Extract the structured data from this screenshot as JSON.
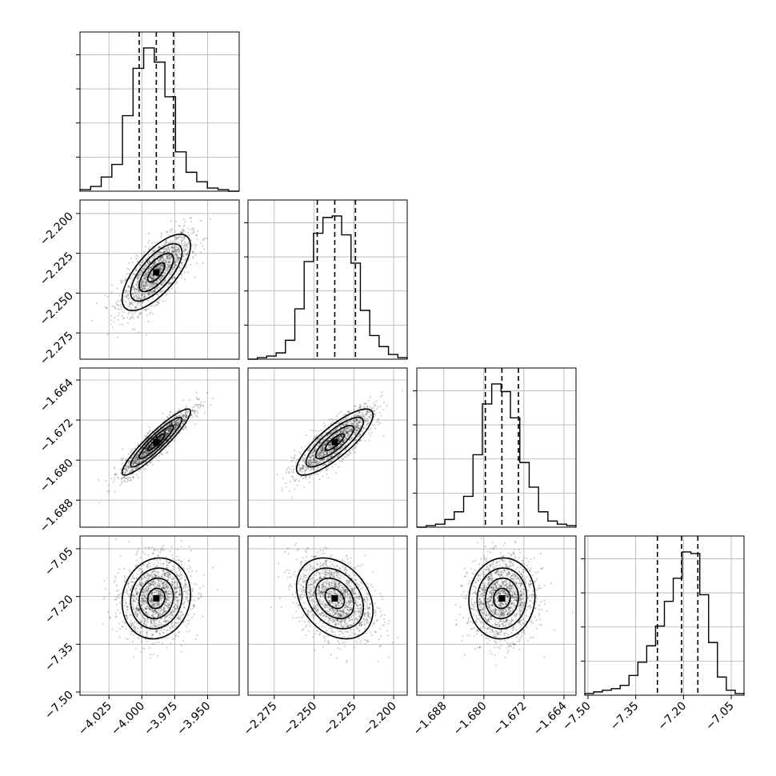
{
  "chart_data": {
    "type": "corner",
    "grid": true,
    "parameters": [
      {
        "range": [
          -4.047,
          -3.926
        ],
        "ticks": [
          -4.025,
          -4.0,
          -3.975,
          -3.95
        ],
        "tick_labels": [
          "−4.025",
          "−4.000",
          "−3.975",
          "−3.950"
        ],
        "quantiles": [
          -4.002,
          -3.989,
          -3.976
        ],
        "hist": [
          0.01,
          0.03,
          0.09,
          0.17,
          0.48,
          0.78,
          0.91,
          0.82,
          0.6,
          0.25,
          0.12,
          0.06,
          0.02,
          0.01,
          0.0
        ]
      },
      {
        "range": [
          -2.2915,
          -2.1915
        ],
        "ticks": [
          -2.275,
          -2.25,
          -2.225,
          -2.2
        ],
        "tick_labels": [
          "−2.275",
          "−2.250",
          "−2.225",
          "−2.200"
        ],
        "quantiles": [
          -2.248,
          -2.237,
          -2.224
        ],
        "hist": [
          0.0,
          0.01,
          0.02,
          0.04,
          0.12,
          0.32,
          0.62,
          0.8,
          0.9,
          0.91,
          0.79,
          0.61,
          0.31,
          0.15,
          0.08,
          0.03,
          0.01
        ]
      },
      {
        "range": [
          -1.6934,
          -1.6616
        ],
        "ticks": [
          -1.688,
          -1.68,
          -1.672,
          -1.664
        ],
        "tick_labels": [
          "−1.688",
          "−1.680",
          "−1.672",
          "−1.664"
        ],
        "quantiles": [
          -1.6797,
          -1.6764,
          -1.6731
        ],
        "hist": [
          0.0,
          0.01,
          0.02,
          0.05,
          0.1,
          0.2,
          0.47,
          0.8,
          0.93,
          0.88,
          0.71,
          0.42,
          0.26,
          0.1,
          0.04,
          0.02,
          0.01
        ]
      },
      {
        "range": [
          -7.51,
          -7.01
        ],
        "ticks": [
          -7.5,
          -7.35,
          -7.2,
          -7.05
        ],
        "tick_labels": [
          "−7.50",
          "−7.35",
          "−7.20",
          "−7.05"
        ],
        "quantiles": [
          -7.282,
          -7.206,
          -7.155
        ],
        "hist": [
          0.01,
          0.02,
          0.03,
          0.04,
          0.06,
          0.12,
          0.2,
          0.3,
          0.42,
          0.57,
          0.71,
          0.87,
          0.86,
          0.61,
          0.32,
          0.11,
          0.03,
          0.01
        ]
      }
    ],
    "correlations": {
      "1-0": 0.7,
      "2-0": 0.92,
      "2-1": 0.82,
      "3-0": 0.1,
      "3-1": -0.3,
      "3-2": 0.05
    }
  }
}
